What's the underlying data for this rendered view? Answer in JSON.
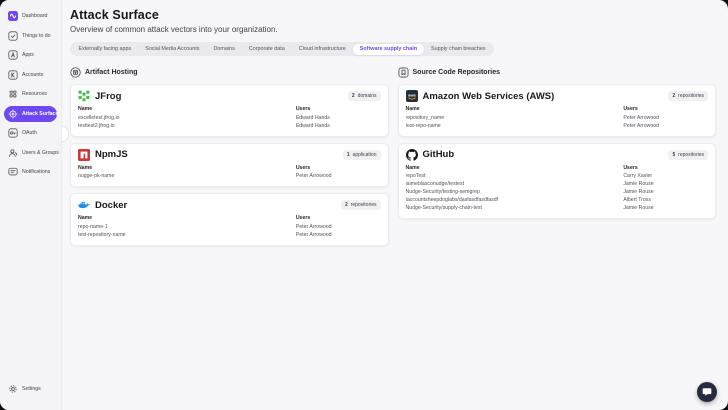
{
  "colors": {
    "accent": "#6E49F2",
    "jfrog_green": "#41BF47",
    "npm_red": "#CB3837",
    "docker_blue": "#1D90E8",
    "aws_navy": "#232F3E",
    "github_black": "#171515"
  },
  "sidebar": {
    "items": [
      {
        "label": "Dashboard",
        "icon": "nudge-logo-icon",
        "active": false
      },
      {
        "label": "Things to do",
        "icon": "things-to-do-icon",
        "active": false
      },
      {
        "label": "Apps",
        "icon": "apps-icon",
        "active": false
      },
      {
        "label": "Accounts",
        "icon": "accounts-icon",
        "active": false
      },
      {
        "label": "Resources",
        "icon": "resources-icon",
        "active": false
      },
      {
        "label": "Attack Surface",
        "icon": "attack-surface-icon",
        "active": true
      },
      {
        "label": "OAuth",
        "icon": "oauth-icon",
        "active": false
      },
      {
        "label": "Users & Groups",
        "icon": "users-groups-icon",
        "active": false
      },
      {
        "label": "Notifications",
        "icon": "notifications-icon",
        "active": false
      }
    ],
    "footer_item": {
      "label": "Settings",
      "icon": "settings-icon"
    }
  },
  "header": {
    "title": "Attack Surface",
    "subtitle": "Overview of common attack vectors into your organization."
  },
  "tabs": [
    {
      "label": "Externally facing apps",
      "active": false
    },
    {
      "label": "Social Media Accounts",
      "active": false
    },
    {
      "label": "Domains",
      "active": false
    },
    {
      "label": "Corporate data",
      "active": false
    },
    {
      "label": "Cloud infrastructure",
      "active": false
    },
    {
      "label": "Software supply chain",
      "active": true
    },
    {
      "label": "Supply chain breaches",
      "active": false
    }
  ],
  "columns": [
    {
      "title": "Artifact Hosting",
      "icon": "artifact-hosting-icon",
      "cards": [
        {
          "vendor": "JFrog",
          "icon": "jfrog-icon",
          "badge": {
            "count": "2",
            "label": "domains"
          },
          "name_header": "Name",
          "users_header": "Users",
          "rows": [
            {
              "name": "excelletest.jfrog.io",
              "user": "Edward Hands"
            },
            {
              "name": "testtest2.jfrog.io",
              "user": "Edward Hands"
            }
          ]
        },
        {
          "vendor": "NpmJS",
          "icon": "npm-icon",
          "badge": {
            "count": "1",
            "label": "application"
          },
          "name_header": "Name",
          "users_header": "Users",
          "rows": [
            {
              "name": "nugge-pk-name",
              "user": "Peter Arrowood"
            }
          ]
        },
        {
          "vendor": "Docker",
          "icon": "docker-icon",
          "badge": {
            "count": "2",
            "label": "repositories"
          },
          "name_header": "Name",
          "users_header": "Users",
          "rows": [
            {
              "name": "repo-name-1",
              "user": "Peter Arrowood"
            },
            {
              "name": "test-repository-name",
              "user": "Peter Arrowood"
            }
          ]
        }
      ]
    },
    {
      "title": "Source Code Repositories",
      "icon": "source-code-repositories-icon",
      "cards": [
        {
          "vendor": "Amazon Web Services (AWS)",
          "icon": "aws-icon",
          "badge": {
            "count": "2",
            "label": "repositories"
          },
          "name_header": "Name",
          "users_header": "Users",
          "rows": [
            {
              "name": "repository_name",
              "user": "Peter Arrowood"
            },
            {
              "name": "test-repo-name",
              "user": "Peter Arrowood"
            }
          ]
        },
        {
          "vendor": "GitHub",
          "icon": "github-icon",
          "badge": {
            "count": "5",
            "label": "repositories"
          },
          "name_header": "Name",
          "users_header": "Users",
          "rows": [
            {
              "name": "repoTest",
              "user": "Carry Xavier"
            },
            {
              "name": "jaimeblasconudge/testest",
              "user": "Jamie Rouse"
            },
            {
              "name": "Nudge-Security/testing-semgrep",
              "user": "Jamie Rouse"
            },
            {
              "name": "taccountsheepdoglabs/dasfasdfasdfasdf",
              "user": "Albert Tross"
            },
            {
              "name": "Nudge-Security/supply-chain-test",
              "user": "Jamie Rouse"
            }
          ]
        }
      ]
    }
  ],
  "chat": {
    "tooltip": "Chat"
  }
}
